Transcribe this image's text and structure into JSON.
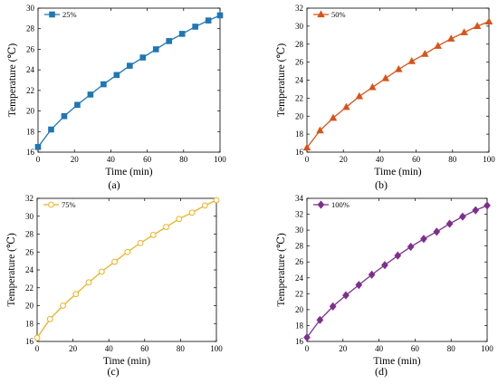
{
  "chart_data": [
    {
      "type": "line",
      "caption": "(a)",
      "xlabel": "Time (min)",
      "ylabel": "Temperature (℃)",
      "xlim": [
        0,
        100
      ],
      "ylim": [
        16,
        30
      ],
      "xticks": [
        "0",
        "20",
        "40",
        "60",
        "80",
        "100"
      ],
      "yticks": [
        "16",
        "18",
        "20",
        "22",
        "24",
        "26",
        "28",
        "30"
      ],
      "marker": "square",
      "color": "#1f77b4",
      "legend_position": "top-left",
      "series": [
        {
          "name": "25%",
          "x": [
            0,
            7.2,
            14.4,
            21.6,
            28.8,
            36,
            43.2,
            50.4,
            57.6,
            64.8,
            72,
            79.2,
            86.4,
            93.6,
            100
          ],
          "y": [
            16.5,
            18.2,
            19.5,
            20.6,
            21.6,
            22.6,
            23.5,
            24.4,
            25.2,
            26.0,
            26.8,
            27.5,
            28.2,
            28.8,
            29.3
          ]
        }
      ]
    },
    {
      "type": "line",
      "caption": "(b)",
      "xlabel": "Time (min)",
      "ylabel": "Temperature (℃)",
      "xlim": [
        0,
        100
      ],
      "ylim": [
        16,
        32
      ],
      "xticks": [
        "0",
        "20",
        "40",
        "60",
        "80",
        "100"
      ],
      "yticks": [
        "16",
        "18",
        "20",
        "22",
        "24",
        "26",
        "28",
        "30",
        "32"
      ],
      "marker": "triangle",
      "color": "#d95319",
      "legend_position": "top-left",
      "series": [
        {
          "name": "50%",
          "x": [
            0,
            7.2,
            14.4,
            21.6,
            28.8,
            36,
            43.2,
            50.4,
            57.6,
            64.8,
            72,
            79.2,
            86.4,
            93.6,
            100
          ],
          "y": [
            16.5,
            18.4,
            19.8,
            21.0,
            22.2,
            23.2,
            24.2,
            25.2,
            26.1,
            26.9,
            27.8,
            28.6,
            29.3,
            30.0,
            30.5
          ]
        }
      ]
    },
    {
      "type": "line",
      "caption": "(c)",
      "xlabel": "Time (min)",
      "ylabel": "Temperature (℃)",
      "xlim": [
        0,
        100
      ],
      "ylim": [
        16,
        32
      ],
      "xticks": [
        "0",
        "20",
        "40",
        "60",
        "80",
        "100"
      ],
      "yticks": [
        "16",
        "18",
        "20",
        "22",
        "24",
        "26",
        "28",
        "30",
        "32"
      ],
      "marker": "circle",
      "color": "#edb120",
      "legend_position": "top-left",
      "series": [
        {
          "name": "75%",
          "x": [
            0,
            7.2,
            14.4,
            21.6,
            28.8,
            36,
            43.2,
            50.4,
            57.6,
            64.8,
            72,
            79.2,
            86.4,
            93.6,
            100
          ],
          "y": [
            16.4,
            18.5,
            20.0,
            21.3,
            22.6,
            23.8,
            24.9,
            26.0,
            27.0,
            27.9,
            28.8,
            29.7,
            30.4,
            31.2,
            31.8
          ]
        }
      ]
    },
    {
      "type": "line",
      "caption": "(d)",
      "xlabel": "Time (min)",
      "ylabel": "Temperature (℃)",
      "xlim": [
        0,
        100
      ],
      "ylim": [
        16,
        34
      ],
      "xticks": [
        "0",
        "20",
        "40",
        "60",
        "80",
        "100"
      ],
      "yticks": [
        "16",
        "18",
        "20",
        "22",
        "24",
        "26",
        "28",
        "30",
        "32",
        "34"
      ],
      "marker": "diamond",
      "color": "#7e2f8e",
      "legend_position": "top-left",
      "series": [
        {
          "name": "100%",
          "x": [
            0,
            7.2,
            14.4,
            21.6,
            28.8,
            36,
            43.2,
            50.4,
            57.6,
            64.8,
            72,
            79.2,
            86.4,
            93.6,
            100
          ],
          "y": [
            16.5,
            18.7,
            20.4,
            21.8,
            23.1,
            24.4,
            25.6,
            26.8,
            27.9,
            28.9,
            29.8,
            30.8,
            31.7,
            32.5,
            33.1
          ]
        }
      ]
    }
  ]
}
